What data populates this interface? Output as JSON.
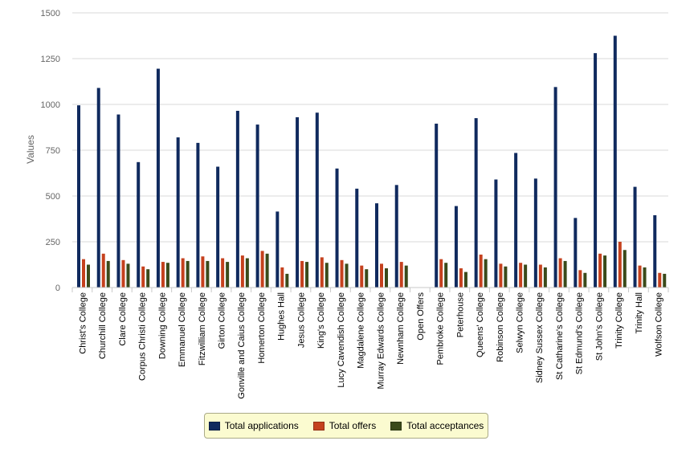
{
  "chart_data": {
    "type": "bar",
    "ylabel": "Values",
    "ylim": [
      0,
      1500
    ],
    "yticks": [
      0,
      250,
      500,
      750,
      1000,
      1250,
      1500
    ],
    "grid": true,
    "legend_position": "bottom",
    "categories": [
      "Christ's College",
      "Churchill College",
      "Clare College",
      "Corpus Christi College",
      "Downing College",
      "Emmanuel College",
      "Fitzwilliam College",
      "Girton College",
      "Gonville and Caius College",
      "Homerton College",
      "Hughes Hall",
      "Jesus College",
      "King's College",
      "Lucy Cavendish College",
      "Magdalene College",
      "Murray Edwards College",
      "Newnham College",
      "Open Offers",
      "Pembroke College",
      "Peterhouse",
      "Queens' College",
      "Robinson College",
      "Selwyn College",
      "Sidney Sussex College",
      "St Catharine's College",
      "St Edmund's College",
      "St John's College",
      "Trinity College",
      "Trinity Hall",
      "Wolfson College"
    ],
    "series": [
      {
        "name": "Total applications",
        "color": "#102a5e",
        "values": [
          995,
          1090,
          945,
          685,
          1195,
          820,
          790,
          660,
          965,
          890,
          415,
          930,
          955,
          650,
          540,
          460,
          560,
          0,
          895,
          445,
          925,
          590,
          735,
          595,
          1095,
          380,
          1280,
          1375,
          550,
          395
        ]
      },
      {
        "name": "Total offers",
        "color": "#c5411e",
        "values": [
          155,
          185,
          150,
          115,
          140,
          160,
          170,
          160,
          175,
          200,
          110,
          145,
          165,
          150,
          120,
          130,
          140,
          0,
          155,
          105,
          180,
          130,
          135,
          125,
          160,
          95,
          185,
          250,
          120,
          80
        ]
      },
      {
        "name": "Total acceptances",
        "color": "#3a4a1a",
        "values": [
          125,
          145,
          130,
          100,
          135,
          145,
          145,
          140,
          160,
          185,
          75,
          140,
          135,
          130,
          100,
          105,
          120,
          0,
          135,
          85,
          155,
          115,
          125,
          110,
          145,
          80,
          175,
          205,
          110,
          75
        ]
      }
    ]
  }
}
